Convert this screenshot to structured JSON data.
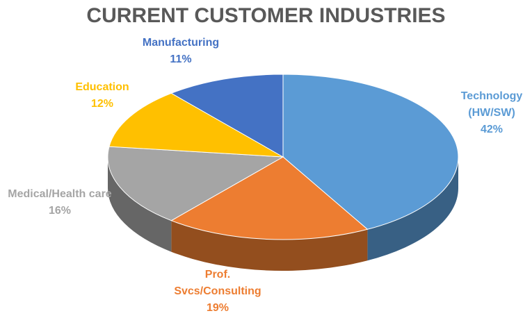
{
  "chart_data": {
    "type": "pie3d",
    "title": "CURRENT CUSTOMER INDUSTRIES",
    "categories": [
      "Technology (HW/SW)",
      "Prof. Svcs/Consulting",
      "Medical/Health care",
      "Education",
      "Manufacturing"
    ],
    "values": [
      42,
      19,
      16,
      12,
      11
    ],
    "value_labels": [
      "42%",
      "19%",
      "16%",
      "12%",
      "11%"
    ],
    "colors": [
      "#5b9bd5",
      "#ed7d31",
      "#a5a5a5",
      "#ffc000",
      "#4472c4"
    ]
  }
}
